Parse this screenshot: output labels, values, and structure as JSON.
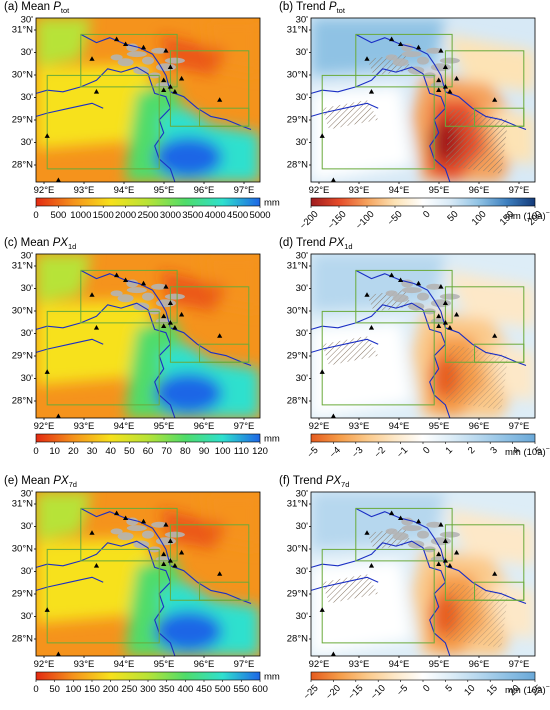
{
  "lon_ticks": [
    "92°E",
    "93°E",
    "94°E",
    "95°E",
    "96°E",
    "97°E"
  ],
  "lat_ticks": [
    "31°N",
    "30'",
    "30°N",
    "30'",
    "29°N",
    "30'",
    "28°N"
  ],
  "lat_top_tick": "30'",
  "panels": [
    {
      "letter": "(a)",
      "word": "Mean",
      "var": "P",
      "sub": "tot",
      "cbar": {
        "type": "sequential",
        "ticks": [
          "0",
          "500",
          "1000",
          "1500",
          "2000",
          "2500",
          "3000",
          "3500",
          "4000",
          "4500",
          "5000"
        ],
        "unit": "mm",
        "unit_sup": "",
        "colors": [
          "#e32a12",
          "#f5931c",
          "#f7e11c",
          "#b7e337",
          "#4fdc6a",
          "#2fe0ce",
          "#1e66e6"
        ]
      }
    },
    {
      "letter": "(b)",
      "word": "Trend",
      "var": "P",
      "sub": "tot",
      "cbar": {
        "type": "diverging",
        "ticks": [
          "-200",
          "-150",
          "-100",
          "-50",
          "0",
          "50",
          "100",
          "150",
          "200"
        ],
        "unit": "mm (10a)",
        "unit_sup": "-1",
        "colors": [
          "#9e1b1e",
          "#e54b2a",
          "#f5a25c",
          "#fde3b5",
          "#ffffff",
          "#d7e9f6",
          "#8fc2e4",
          "#3d7fbf",
          "#143a79"
        ]
      }
    },
    {
      "letter": "(c)",
      "word": "Mean",
      "var": "PX",
      "sub": "1d",
      "cbar": {
        "type": "sequential",
        "ticks": [
          "0",
          "10",
          "20",
          "30",
          "40",
          "50",
          "60",
          "70",
          "80",
          "90",
          "100",
          "110",
          "120"
        ],
        "unit": "mm",
        "unit_sup": "",
        "colors": [
          "#e32a12",
          "#f5931c",
          "#f7e11c",
          "#b7e337",
          "#4fdc6a",
          "#2fe0ce",
          "#1e66e6"
        ]
      }
    },
    {
      "letter": "(d)",
      "word": "Trend",
      "var": "PX",
      "sub": "1d",
      "cbar": {
        "type": "diverging",
        "ticks": [
          "-5",
          "-4",
          "-3",
          "-2",
          "-1",
          "0",
          "1",
          "2",
          "3",
          "4",
          "5"
        ],
        "unit": "mm (10a)",
        "unit_sup": "-1",
        "colors": [
          "#e55b1f",
          "#f59b47",
          "#fbc98a",
          "#fde8c8",
          "#ffffff",
          "#ddedf7",
          "#b6d7ee",
          "#8ec0e4",
          "#6aa8d8"
        ]
      }
    },
    {
      "letter": "(e)",
      "word": "Mean",
      "var": "PX",
      "sub": "7d",
      "cbar": {
        "type": "sequential",
        "ticks": [
          "0",
          "50",
          "100",
          "150",
          "200",
          "250",
          "300",
          "350",
          "400",
          "450",
          "500",
          "550",
          "600"
        ],
        "unit": "mm",
        "unit_sup": "",
        "colors": [
          "#e32a12",
          "#f5931c",
          "#f7e11c",
          "#b7e337",
          "#4fdc6a",
          "#2fe0ce",
          "#1e66e6"
        ]
      }
    },
    {
      "letter": "(f)",
      "word": "Trend",
      "var": "PX",
      "sub": "7d",
      "cbar": {
        "type": "diverging",
        "ticks": [
          "-25",
          "-20",
          "-15",
          "-10",
          "-5",
          "0",
          "5",
          "10",
          "15",
          "20",
          "25"
        ],
        "unit": "mm (10a)",
        "unit_sup": "-1",
        "colors": [
          "#e55b1f",
          "#f59b47",
          "#fbc98a",
          "#fde8c8",
          "#ffffff",
          "#ddedf7",
          "#b6d7ee",
          "#8ec0e4",
          "#6aa8d8"
        ]
      }
    }
  ]
}
